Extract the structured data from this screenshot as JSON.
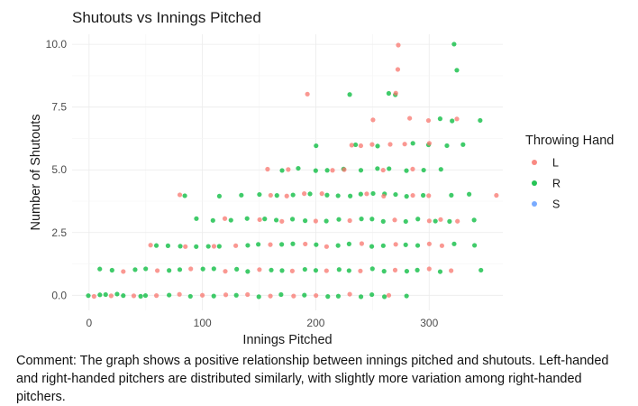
{
  "chart_data": {
    "type": "scatter",
    "title": "Shutouts vs Innings Pitched",
    "xlabel": "Innings Pitched",
    "ylabel": "Number of Shutouts",
    "xlim": [
      -15,
      365
    ],
    "ylim": [
      -0.6,
      10.4
    ],
    "x_ticks": [
      0,
      100,
      200,
      300
    ],
    "x_tick_labels": [
      "0",
      "100",
      "200",
      "300"
    ],
    "y_ticks": [
      0,
      2.5,
      5,
      7.5,
      10
    ],
    "y_tick_labels": [
      "0.0",
      "2.5",
      "5.0",
      "7.5",
      "10.0"
    ],
    "grid": true,
    "legend": {
      "title": "Throwing Hand",
      "placement": "right",
      "entries": [
        "L",
        "R",
        "S"
      ]
    },
    "colors": {
      "L": "#F8766D",
      "R": "#00BA38",
      "S": "#619CFF"
    },
    "series": [
      {
        "name": "L",
        "points": [
          [
            273,
            10
          ],
          [
            272,
            9
          ],
          [
            193,
            8
          ],
          [
            270,
            8
          ],
          [
            283,
            7
          ],
          [
            250,
            7
          ],
          [
            300,
            7
          ],
          [
            325,
            7
          ],
          [
            300,
            6
          ],
          [
            232,
            6
          ],
          [
            240,
            6
          ],
          [
            265,
            6
          ],
          [
            278,
            6
          ],
          [
            250,
            6
          ],
          [
            158,
            5
          ],
          [
            175,
            5
          ],
          [
            215,
            5
          ],
          [
            225,
            5
          ],
          [
            260,
            5
          ],
          [
            285,
            5
          ],
          [
            80,
            4
          ],
          [
            160,
            4
          ],
          [
            175,
            4
          ],
          [
            190,
            4
          ],
          [
            205,
            4
          ],
          [
            245,
            4
          ],
          [
            260,
            4
          ],
          [
            285,
            4
          ],
          [
            300,
            4
          ],
          [
            360,
            4
          ],
          [
            120,
            3
          ],
          [
            150,
            3
          ],
          [
            170,
            3
          ],
          [
            200,
            3
          ],
          [
            230,
            3
          ],
          [
            270,
            3
          ],
          [
            300,
            3
          ],
          [
            310,
            3
          ],
          [
            325,
            3
          ],
          [
            55,
            2
          ],
          [
            85,
            2
          ],
          [
            110,
            2
          ],
          [
            130,
            2
          ],
          [
            160,
            2
          ],
          [
            190,
            2
          ],
          [
            210,
            2
          ],
          [
            240,
            2
          ],
          [
            270,
            2
          ],
          [
            300,
            2
          ],
          [
            312,
            2
          ],
          [
            30,
            1
          ],
          [
            60,
            1
          ],
          [
            90,
            1
          ],
          [
            120,
            1
          ],
          [
            150,
            1
          ],
          [
            180,
            1
          ],
          [
            210,
            1
          ],
          [
            240,
            1
          ],
          [
            270,
            1
          ],
          [
            300,
            1
          ],
          [
            320,
            1
          ],
          [
            5,
            0
          ],
          [
            20,
            0
          ],
          [
            40,
            0
          ],
          [
            60,
            0
          ],
          [
            80,
            0
          ],
          [
            100,
            0
          ],
          [
            120,
            0
          ],
          [
            140,
            0
          ],
          [
            160,
            0
          ],
          [
            180,
            0
          ],
          [
            200,
            0
          ],
          [
            230,
            0
          ],
          [
            265,
            0
          ]
        ]
      },
      {
        "name": "R",
        "points": [
          [
            322,
            10
          ],
          [
            325,
            9
          ],
          [
            230,
            8
          ],
          [
            265,
            8
          ],
          [
            270,
            8
          ],
          [
            310,
            7
          ],
          [
            320,
            7
          ],
          [
            345,
            7
          ],
          [
            200,
            6
          ],
          [
            235,
            6
          ],
          [
            255,
            6
          ],
          [
            285,
            6
          ],
          [
            300,
            6
          ],
          [
            315,
            6
          ],
          [
            330,
            6
          ],
          [
            170,
            5
          ],
          [
            185,
            5
          ],
          [
            200,
            5
          ],
          [
            210,
            5
          ],
          [
            225,
            5
          ],
          [
            240,
            5
          ],
          [
            255,
            5
          ],
          [
            265,
            5
          ],
          [
            280,
            5
          ],
          [
            295,
            5
          ],
          [
            310,
            5
          ],
          [
            85,
            4
          ],
          [
            115,
            4
          ],
          [
            135,
            4
          ],
          [
            150,
            4
          ],
          [
            165,
            4
          ],
          [
            180,
            4
          ],
          [
            195,
            4
          ],
          [
            210,
            4
          ],
          [
            220,
            4
          ],
          [
            230,
            4
          ],
          [
            240,
            4
          ],
          [
            250,
            4
          ],
          [
            260,
            4
          ],
          [
            270,
            4
          ],
          [
            280,
            4
          ],
          [
            295,
            4
          ],
          [
            320,
            4
          ],
          [
            335,
            4
          ],
          [
            95,
            3
          ],
          [
            110,
            3
          ],
          [
            125,
            3
          ],
          [
            140,
            3
          ],
          [
            155,
            3
          ],
          [
            165,
            3
          ],
          [
            180,
            3
          ],
          [
            190,
            3
          ],
          [
            210,
            3
          ],
          [
            220,
            3
          ],
          [
            240,
            3
          ],
          [
            250,
            3
          ],
          [
            260,
            3
          ],
          [
            280,
            3
          ],
          [
            290,
            3
          ],
          [
            305,
            3
          ],
          [
            318,
            3
          ],
          [
            340,
            3
          ],
          [
            60,
            2
          ],
          [
            70,
            2
          ],
          [
            80,
            2
          ],
          [
            95,
            2
          ],
          [
            105,
            2
          ],
          [
            115,
            2
          ],
          [
            140,
            2
          ],
          [
            150,
            2
          ],
          [
            170,
            2
          ],
          [
            180,
            2
          ],
          [
            200,
            2
          ],
          [
            220,
            2
          ],
          [
            230,
            2
          ],
          [
            250,
            2
          ],
          [
            260,
            2
          ],
          [
            280,
            2
          ],
          [
            290,
            2
          ],
          [
            322,
            2
          ],
          [
            340,
            2
          ],
          [
            10,
            1
          ],
          [
            20,
            1
          ],
          [
            40,
            1
          ],
          [
            50,
            1
          ],
          [
            70,
            1
          ],
          [
            80,
            1
          ],
          [
            100,
            1
          ],
          [
            110,
            1
          ],
          [
            130,
            1
          ],
          [
            140,
            1
          ],
          [
            160,
            1
          ],
          [
            170,
            1
          ],
          [
            190,
            1
          ],
          [
            200,
            1
          ],
          [
            220,
            1
          ],
          [
            230,
            1
          ],
          [
            250,
            1
          ],
          [
            260,
            1
          ],
          [
            280,
            1
          ],
          [
            290,
            1
          ],
          [
            310,
            1
          ],
          [
            345,
            1
          ],
          [
            0,
            0
          ],
          [
            10,
            0
          ],
          [
            15,
            0
          ],
          [
            25,
            0
          ],
          [
            30,
            0
          ],
          [
            45,
            0
          ],
          [
            50,
            0
          ],
          [
            70,
            0
          ],
          [
            90,
            0
          ],
          [
            110,
            0
          ],
          [
            130,
            0
          ],
          [
            150,
            0
          ],
          [
            170,
            0
          ],
          [
            190,
            0
          ],
          [
            210,
            0
          ],
          [
            220,
            0
          ],
          [
            240,
            0
          ],
          [
            250,
            0
          ],
          [
            260,
            0
          ],
          [
            280,
            0
          ]
        ]
      },
      {
        "name": "S",
        "points": []
      }
    ]
  },
  "comment": "Comment: The graph shows a positive relationship between innings pitched and shutouts. Left-handed and right-handed pitchers are distributed similarly, with slightly more variation among right-handed pitchers."
}
